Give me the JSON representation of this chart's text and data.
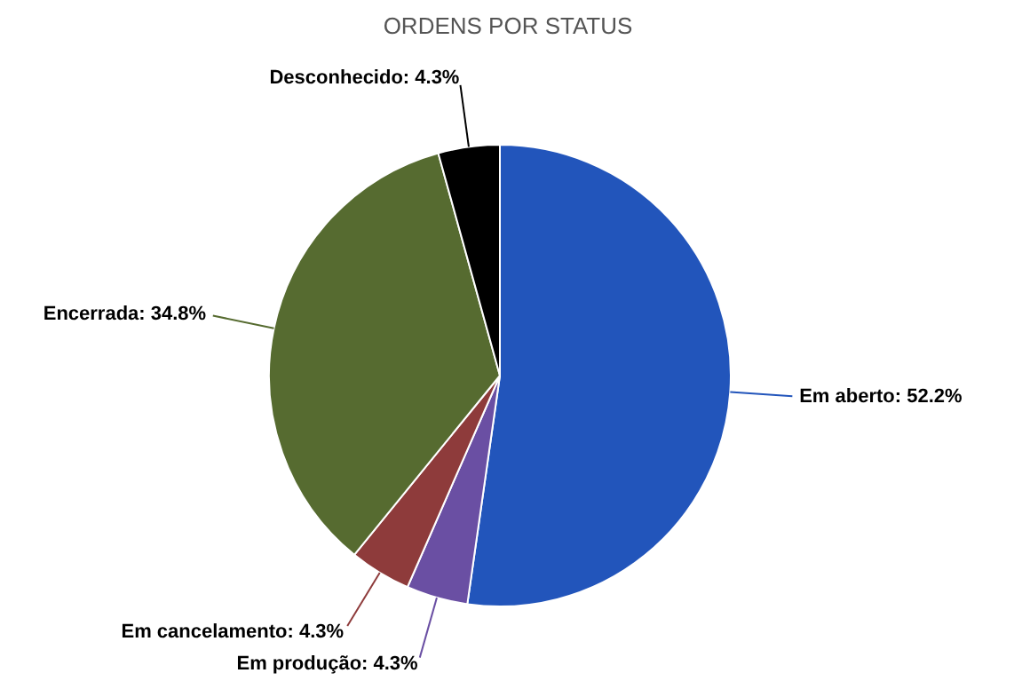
{
  "chart_data": {
    "type": "pie",
    "title": "ORDENS POR STATUS",
    "categories": [
      "Em aberto",
      "Em produção",
      "Em cancelamento",
      "Encerrada",
      "Desconhecido"
    ],
    "values": [
      52.2,
      4.3,
      4.3,
      34.8,
      4.3
    ],
    "value_labels": [
      "52.2%",
      "4.3%",
      "4.3%",
      "34.8%",
      "4.3%"
    ],
    "colors": [
      "#2255bb",
      "#6a4fa3",
      "#8e3b3b",
      "#566b30",
      "#000000"
    ]
  }
}
